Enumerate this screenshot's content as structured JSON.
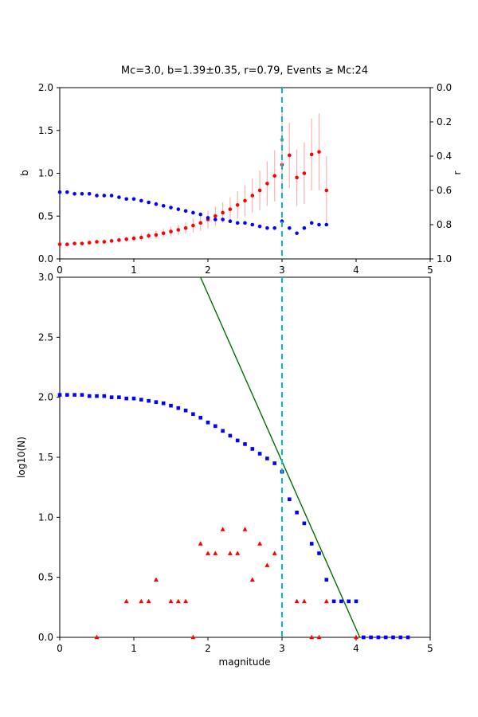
{
  "figure": {
    "background": "#ffffff",
    "accent_colors": {
      "marker_red": "#ff0000",
      "marker_blue": "#0000ff",
      "fit_green": "#007000",
      "mc_cyan": "#00bfbf",
      "error_pink": "#ffb0b0",
      "mc_point_gray": "#909090"
    }
  },
  "chart_data": [
    {
      "name": "b-r-vs-cutoff-magnitude",
      "type": "scatter",
      "title": "Mc=3.0, b=1.39±0.35, r=0.79, Events ≥ Mc:24",
      "xlabel": "",
      "ylabel_left": "b",
      "ylabel_right": "r",
      "xlim": [
        0,
        5
      ],
      "ylim": [
        0.0,
        2.0
      ],
      "rlim": [
        0.0,
        1.0
      ],
      "grid": false,
      "xticks": [
        0,
        1,
        2,
        3,
        4,
        5
      ],
      "xtick_labels": [
        "0",
        "1",
        "2",
        "3",
        "4",
        "5"
      ],
      "yticks_left": [
        0.0,
        0.5,
        1.0,
        1.5,
        2.0
      ],
      "ytick_left_labels": [
        "0.0",
        "0.5",
        "1.0",
        "1.5",
        "2.0"
      ],
      "yticks_right": [
        0.0,
        0.2,
        0.4,
        0.6,
        0.8,
        1.0
      ],
      "ytick_right_labels": [
        "0.0",
        "0.2",
        "0.4",
        "0.6",
        "0.8",
        "1.0"
      ],
      "series": [
        {
          "name": "b-value",
          "kind": "points",
          "marker": "circle",
          "color": "#ff0000",
          "err_color": "#ffb0b0",
          "axis": "left",
          "x": [
            0.0,
            0.1,
            0.2,
            0.3,
            0.4,
            0.5,
            0.6,
            0.7,
            0.8,
            0.9,
            1.0,
            1.1,
            1.2,
            1.3,
            1.4,
            1.5,
            1.6,
            1.7,
            1.8,
            1.9,
            2.0,
            2.1,
            2.2,
            2.3,
            2.4,
            2.5,
            2.6,
            2.7,
            2.8,
            2.9,
            3.0,
            3.1,
            3.2,
            3.3,
            3.4,
            3.5,
            3.6
          ],
          "y": [
            0.17,
            0.17,
            0.18,
            0.18,
            0.19,
            0.2,
            0.2,
            0.21,
            0.22,
            0.23,
            0.24,
            0.25,
            0.27,
            0.28,
            0.3,
            0.32,
            0.34,
            0.36,
            0.39,
            0.42,
            0.46,
            0.5,
            0.54,
            0.58,
            0.63,
            0.68,
            0.74,
            0.8,
            0.88,
            0.97,
            1.1,
            1.21,
            0.95,
            1.0,
            1.22,
            1.25,
            0.8
          ],
          "yerr": [
            0.02,
            0.02,
            0.02,
            0.02,
            0.02,
            0.02,
            0.03,
            0.03,
            0.03,
            0.03,
            0.04,
            0.04,
            0.04,
            0.05,
            0.05,
            0.06,
            0.06,
            0.07,
            0.08,
            0.09,
            0.1,
            0.11,
            0.12,
            0.14,
            0.16,
            0.18,
            0.2,
            0.23,
            0.26,
            0.3,
            0.33,
            0.38,
            0.33,
            0.36,
            0.42,
            0.45,
            0.4
          ]
        },
        {
          "name": "b-at-mc",
          "kind": "points",
          "marker": "circle",
          "color": "#909090",
          "err_color": "#ffb0b0",
          "axis": "left",
          "x": [
            3.0
          ],
          "y": [
            1.39
          ],
          "yerr": [
            0.35
          ]
        },
        {
          "name": "r-value",
          "kind": "points",
          "marker": "circle",
          "color": "#0000ff",
          "axis": "right",
          "x": [
            0.0,
            0.1,
            0.2,
            0.3,
            0.4,
            0.5,
            0.6,
            0.7,
            0.8,
            0.9,
            1.0,
            1.1,
            1.2,
            1.3,
            1.4,
            1.5,
            1.6,
            1.7,
            1.8,
            1.9,
            2.0,
            2.1,
            2.2,
            2.3,
            2.4,
            2.5,
            2.6,
            2.7,
            2.8,
            2.9,
            3.0,
            3.1,
            3.2,
            3.3,
            3.4,
            3.5,
            3.6
          ],
          "y": [
            0.61,
            0.61,
            0.62,
            0.62,
            0.62,
            0.63,
            0.63,
            0.63,
            0.64,
            0.65,
            0.65,
            0.66,
            0.67,
            0.68,
            0.69,
            0.7,
            0.71,
            0.72,
            0.73,
            0.74,
            0.76,
            0.77,
            0.77,
            0.78,
            0.79,
            0.79,
            0.8,
            0.81,
            0.82,
            0.82,
            0.78,
            0.82,
            0.85,
            0.82,
            0.79,
            0.8,
            0.8
          ]
        },
        {
          "name": "mc-cutoff-line",
          "kind": "vline",
          "color": "#00bfbf",
          "style": "dashed",
          "x": 3.0
        }
      ]
    },
    {
      "name": "frequency-magnitude-distribution",
      "type": "scatter",
      "title": "",
      "xlabel": "magnitude",
      "ylabel": "log10(N)",
      "xlim": [
        0,
        5
      ],
      "ylim": [
        0.0,
        3.0
      ],
      "grid": false,
      "xticks": [
        0,
        1,
        2,
        3,
        4,
        5
      ],
      "xtick_labels": [
        "0",
        "1",
        "2",
        "3",
        "4",
        "5"
      ],
      "yticks_left": [
        0.0,
        0.5,
        1.0,
        1.5,
        2.0,
        2.5,
        3.0
      ],
      "ytick_left_labels": [
        "0.0",
        "0.5",
        "1.0",
        "1.5",
        "2.0",
        "2.5",
        "3.0"
      ],
      "series": [
        {
          "name": "gutenberg-richter-fit",
          "kind": "line",
          "color": "#007000",
          "x": [
            1.9,
            4.05
          ],
          "y": [
            3.0,
            0.0
          ]
        },
        {
          "name": "cumulative-counts",
          "kind": "points",
          "marker": "square",
          "color": "#0000ff",
          "axis": "left",
          "x": [
            0.0,
            0.1,
            0.2,
            0.3,
            0.4,
            0.5,
            0.6,
            0.7,
            0.8,
            0.9,
            1.0,
            1.1,
            1.2,
            1.3,
            1.4,
            1.5,
            1.6,
            1.7,
            1.8,
            1.9,
            2.0,
            2.1,
            2.2,
            2.3,
            2.4,
            2.5,
            2.6,
            2.7,
            2.8,
            2.9,
            3.0,
            3.1,
            3.2,
            3.3,
            3.4,
            3.5,
            3.6,
            3.7,
            3.8,
            3.9,
            4.0,
            4.1,
            4.2,
            4.3,
            4.4,
            4.5,
            4.6,
            4.7
          ],
          "y": [
            2.02,
            2.02,
            2.02,
            2.02,
            2.01,
            2.01,
            2.01,
            2.0,
            2.0,
            1.99,
            1.99,
            1.98,
            1.97,
            1.96,
            1.95,
            1.93,
            1.91,
            1.89,
            1.86,
            1.83,
            1.79,
            1.76,
            1.72,
            1.68,
            1.64,
            1.61,
            1.57,
            1.53,
            1.49,
            1.45,
            1.38,
            1.15,
            1.04,
            0.95,
            0.78,
            0.7,
            0.48,
            0.3,
            0.3,
            0.3,
            0.3,
            0.0,
            0.0,
            0.0,
            0.0,
            0.0,
            0.0,
            0.0
          ]
        },
        {
          "name": "binned-counts",
          "kind": "points",
          "marker": "triangle",
          "color": "#ff0000",
          "axis": "left",
          "x": [
            0.5,
            0.9,
            1.1,
            1.2,
            1.3,
            1.5,
            1.6,
            1.7,
            1.8,
            1.9,
            2.0,
            2.1,
            2.2,
            2.3,
            2.4,
            2.5,
            2.6,
            2.7,
            2.8,
            2.9,
            3.2,
            3.3,
            3.4,
            3.5,
            3.6,
            4.0
          ],
          "y": [
            0.0,
            0.3,
            0.3,
            0.3,
            0.48,
            0.3,
            0.3,
            0.3,
            0.0,
            0.78,
            0.7,
            0.7,
            0.9,
            0.7,
            0.7,
            0.9,
            0.48,
            0.78,
            0.6,
            0.7,
            0.3,
            0.3,
            0.0,
            0.0,
            0.3,
            0.0
          ]
        },
        {
          "name": "mc-cutoff-line",
          "kind": "vline",
          "color": "#00bfbf",
          "style": "dashed",
          "x": 3.0
        }
      ]
    }
  ]
}
